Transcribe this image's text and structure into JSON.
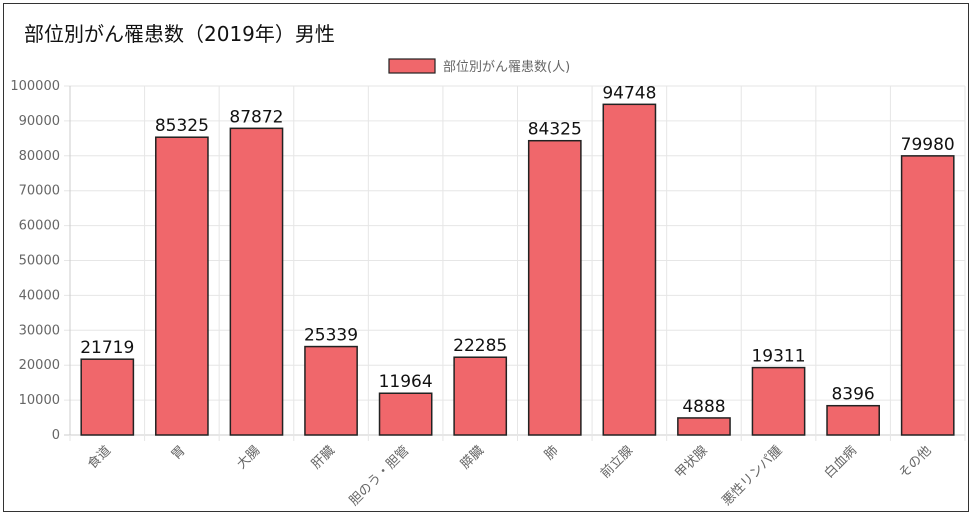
{
  "chart_data": {
    "type": "bar",
    "title": "部位別がん罹患数（2019年）男性",
    "legend": {
      "position": "top",
      "label": "部位別がん罹患数(人)"
    },
    "categories": [
      "食道",
      "胃",
      "大腸",
      "肝臓",
      "胆のう・胆管",
      "膵臓",
      "肺",
      "前立腺",
      "甲状腺",
      "悪性リンパ腫",
      "白血病",
      "その他"
    ],
    "series": [
      {
        "name": "部位別がん罹患数(人)",
        "values": [
          21719,
          85325,
          87872,
          25339,
          11964,
          22285,
          84325,
          94748,
          4888,
          19311,
          8396,
          79980
        ]
      }
    ],
    "ylim": [
      0,
      100000
    ],
    "yticks": [
      0,
      10000,
      20000,
      30000,
      40000,
      50000,
      60000,
      70000,
      80000,
      90000,
      100000
    ],
    "grid": true,
    "bar_fill": "#f0676b",
    "bar_stroke": "#222222"
  }
}
